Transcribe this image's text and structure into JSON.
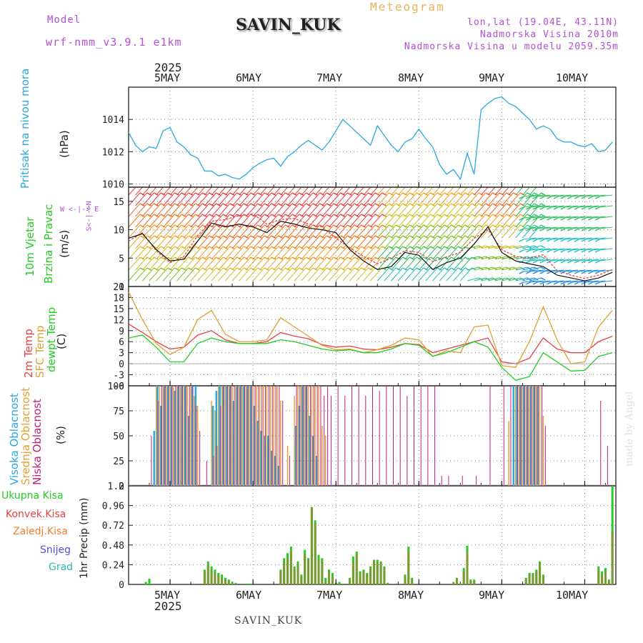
{
  "header": {
    "model_label": "Model",
    "model_name": "wrf-nmm_v3.9.1  e1km",
    "title": "Meteogram",
    "station": "SAVIN_KUK",
    "lonlat": "lon,lat (19.04E, 43.11N)",
    "elevation": "Nadmorska Visina 2010m",
    "model_elevation": "Nadmorska Visina u modelu 2059.35m"
  },
  "footer": {
    "station": "SAVIN_KUK",
    "watermark": "made by Angel"
  },
  "time_axis": {
    "year": "2025",
    "days": [
      "5MAY",
      "6MAY",
      "7MAY",
      "8MAY",
      "9MAY",
      "10MAY"
    ]
  },
  "panels": {
    "pressure": {
      "title": "Pritisak na nivou mora",
      "unit": "(hPa)"
    },
    "wind": {
      "title_line1": "10m Vjetar",
      "title_line2": "Brzina i Pravac",
      "unit": "(m/s)",
      "compass": "W <-|-> E",
      "compass_ns": "S<-|->N"
    },
    "temperature": {
      "label_2m": "2m Temp",
      "label_sfc": "SFC Temp",
      "label_dew": "dewpt Temp",
      "unit": "(C)"
    },
    "cloud": {
      "label_high": "Visoka Oblacnost",
      "label_mid": "Srednja Oblacnost",
      "label_low": "Niska Oblacnost",
      "unit": "(%)"
    },
    "precip": {
      "ylabel": "1hr Precip (mm)",
      "labels": [
        "Ukupna Kisa",
        "Konvek.Kisa",
        "Zaledj.Kisa",
        "Snijeg",
        "Grad"
      ]
    }
  },
  "colors": {
    "pressure": "#2aa8e0",
    "total_rain": "#22cc22",
    "conv_rain": "#e84040",
    "frozen_rain": "#f08030",
    "snow": "#5050e0",
    "hail": "#22c0b0",
    "temp2m": "#e84040",
    "sfc": "#e0a030",
    "dew": "#22cc22",
    "cloud_high": "#2aa8e0",
    "cloud_mid": "#e0a030",
    "cloud_low": "#c0207a",
    "violet": "#b44fd6"
  },
  "chart_data": [
    {
      "type": "line",
      "name": "pressure",
      "ylim": [
        1009.8,
        1016.0
      ],
      "yticks": [
        1010,
        1012,
        1014
      ],
      "x": [
        0,
        2,
        4,
        6,
        8,
        10,
        12,
        14,
        16,
        18,
        20,
        22,
        24,
        26,
        28,
        30,
        32,
        34,
        36,
        38,
        40,
        42,
        44,
        46,
        48,
        50,
        52,
        54,
        56,
        58,
        60,
        62,
        64,
        66,
        68,
        70,
        72,
        74,
        76,
        78,
        80,
        82,
        84,
        86,
        88,
        90,
        92,
        94,
        96,
        98,
        100,
        102,
        104,
        106,
        108,
        110,
        112,
        114,
        116,
        118,
        120,
        122,
        124,
        126,
        128,
        130,
        132,
        134,
        136,
        138,
        140
      ],
      "values": [
        1013.2,
        1012.4,
        1012.0,
        1012.3,
        1012.2,
        1013.3,
        1013.5,
        1012.6,
        1012.3,
        1011.8,
        1011.6,
        1010.8,
        1010.8,
        1010.5,
        1010.6,
        1010.4,
        1010.3,
        1010.6,
        1011.0,
        1011.3,
        1011.5,
        1011.6,
        1011.1,
        1011.7,
        1012.0,
        1012.4,
        1012.7,
        1012.4,
        1012.1,
        1012.6,
        1013.3,
        1014.0,
        1013.6,
        1013.2,
        1012.8,
        1012.4,
        1013.6,
        1013.0,
        1012.4,
        1012.0,
        1012.6,
        1012.8,
        1013.4,
        1012.8,
        1012.3,
        1011.2,
        1010.6,
        1010.9,
        1010.3,
        1011.9,
        1010.6,
        1014.6,
        1015.0,
        1015.3,
        1015.4,
        1015.0,
        1014.8,
        1014.4,
        1014.0,
        1013.4,
        1013.6,
        1013.4,
        1012.8,
        1012.6,
        1012.6,
        1012.4,
        1012.3,
        1012.5,
        1012.0,
        1012.1,
        1012.6
      ],
      "x_note": "hours from 4MAY 12UTC"
    },
    {
      "type": "line",
      "name": "wind_speed",
      "ylim": [
        0,
        17.5
      ],
      "yticks": [
        0,
        5,
        10,
        15
      ],
      "x": [
        0,
        4,
        8,
        12,
        16,
        20,
        24,
        28,
        32,
        36,
        40,
        44,
        48,
        52,
        56,
        60,
        64,
        68,
        72,
        76,
        80,
        84,
        88,
        92,
        96,
        100,
        104,
        108,
        112,
        116,
        120,
        124,
        128,
        132,
        136,
        140
      ],
      "series": [
        {
          "name": "speed",
          "values": [
            8.5,
            9.3,
            6.5,
            4.5,
            4.8,
            8.0,
            11.2,
            10.5,
            11.0,
            10.5,
            9.5,
            11.5,
            11.0,
            10.3,
            10.0,
            9.5,
            6.5,
            4.5,
            3.0,
            3.5,
            6.0,
            5.5,
            3.0,
            4.2,
            5.0,
            7.5,
            10.5,
            6.0,
            4.5,
            4.0,
            3.5,
            2.0,
            1.5,
            1.0,
            1.5,
            2.5
          ]
        },
        {
          "name": "gust",
          "values": [
            8.0,
            9.5,
            6.3,
            4.2,
            5.3,
            9.0,
            11.5,
            11.8,
            12.5,
            12.8,
            11.0,
            11.8,
            12.0,
            11.0,
            10.5,
            8.5,
            6.8,
            5.3,
            4.0,
            5.0,
            6.3,
            6.0,
            4.4,
            5.2,
            6.0,
            8.5,
            10.0,
            6.5,
            5.3,
            5.0,
            5.6,
            2.8,
            2.0,
            1.4,
            2.0,
            3.0
          ]
        }
      ]
    },
    {
      "type": "line",
      "name": "temperature",
      "ylim": [
        -6,
        21
      ],
      "yticks": [
        -6,
        -3,
        0,
        3,
        6,
        9,
        12,
        15,
        18,
        21
      ],
      "x": [
        0,
        4,
        8,
        12,
        16,
        20,
        24,
        28,
        32,
        36,
        40,
        44,
        48,
        52,
        56,
        60,
        64,
        68,
        72,
        76,
        80,
        84,
        88,
        92,
        96,
        100,
        104,
        108,
        112,
        116,
        120,
        124,
        128,
        132,
        136,
        140
      ],
      "series": [
        {
          "name": "temp2m",
          "values": [
            10.8,
            8.5,
            6.0,
            4.0,
            4.5,
            7.8,
            9.0,
            6.5,
            5.5,
            5.5,
            6.0,
            8.5,
            7.5,
            6.8,
            5.2,
            4.5,
            4.8,
            4.0,
            3.8,
            4.5,
            5.5,
            5.2,
            3.0,
            4.0,
            5.0,
            6.0,
            7.0,
            0.5,
            0.0,
            1.5,
            7.0,
            4.0,
            3.0,
            3.0,
            6.0,
            7.5
          ]
        },
        {
          "name": "sfc",
          "values": [
            19.5,
            12.0,
            5.5,
            2.5,
            4.5,
            12.0,
            14.5,
            8.0,
            6.0,
            6.0,
            6.5,
            12.5,
            10.0,
            7.5,
            5.0,
            3.8,
            4.0,
            3.0,
            3.8,
            5.0,
            7.0,
            6.5,
            2.0,
            3.5,
            3.0,
            10.0,
            10.5,
            -0.5,
            -1.0,
            6.0,
            15.5,
            6.5,
            0.0,
            0.5,
            10.0,
            14.5
          ]
        },
        {
          "name": "dew",
          "values": [
            7.0,
            7.8,
            4.5,
            0.5,
            0.5,
            5.5,
            7.0,
            6.0,
            5.5,
            5.5,
            5.5,
            6.5,
            6.0,
            5.0,
            4.0,
            3.5,
            3.8,
            3.0,
            3.0,
            4.0,
            5.5,
            5.0,
            2.0,
            3.0,
            4.5,
            6.0,
            4.5,
            -1.0,
            -4.5,
            -3.5,
            3.0,
            0.5,
            -2.0,
            -1.8,
            2.0,
            3.0
          ]
        }
      ]
    },
    {
      "type": "bar",
      "name": "cloud_cover",
      "ylim": [
        0,
        100
      ],
      "yticks": [
        0,
        25,
        50,
        75,
        100
      ],
      "x": [
        6,
        8,
        9,
        10,
        11,
        12,
        13,
        14,
        15,
        16,
        17,
        18,
        19,
        20,
        22,
        24,
        25,
        26,
        27,
        28,
        29,
        30,
        31,
        32,
        33,
        34,
        35,
        36,
        37,
        38,
        39,
        40,
        41,
        42,
        43,
        44,
        46,
        48,
        49,
        50,
        51,
        52,
        53,
        54,
        55,
        56,
        57,
        58,
        60,
        62,
        64,
        66,
        68,
        70,
        72,
        74,
        76,
        78,
        80,
        82,
        84,
        86,
        88,
        90,
        92,
        96,
        100,
        104,
        108,
        110,
        112,
        113,
        114,
        115,
        116,
        117,
        118,
        119,
        120,
        121,
        122,
        124,
        126,
        128,
        130,
        132,
        134,
        136,
        138
      ],
      "series": [
        {
          "name": "high",
          "values": [
            0,
            55,
            100,
            80,
            100,
            100,
            100,
            95,
            100,
            100,
            100,
            70,
            100,
            100,
            0,
            0,
            80,
            95,
            100,
            100,
            100,
            100,
            85,
            100,
            100,
            100,
            100,
            100,
            80,
            65,
            55,
            50,
            50,
            35,
            30,
            20,
            0,
            0,
            60,
            80,
            100,
            100,
            70,
            50,
            30,
            0,
            0,
            0,
            0,
            0,
            0,
            0,
            0,
            0,
            0,
            0,
            0,
            0,
            0,
            0,
            0,
            0,
            0,
            0,
            0,
            0,
            0,
            0,
            0,
            0,
            100,
            100,
            100,
            100,
            100,
            100,
            100,
            100,
            0,
            0,
            0,
            0,
            0,
            0,
            0,
            0,
            0,
            0,
            0
          ]
        },
        {
          "name": "mid",
          "values": [
            0,
            100,
            100,
            100,
            100,
            100,
            100,
            100,
            100,
            100,
            100,
            100,
            90,
            80,
            0,
            85,
            75,
            100,
            100,
            100,
            100,
            100,
            100,
            100,
            100,
            100,
            100,
            100,
            100,
            100,
            100,
            100,
            100,
            100,
            100,
            85,
            40,
            90,
            100,
            100,
            100,
            100,
            100,
            100,
            100,
            60,
            50,
            0,
            0,
            0,
            0,
            0,
            0,
            0,
            0,
            0,
            0,
            0,
            0,
            0,
            0,
            0,
            0,
            0,
            0,
            0,
            0,
            0,
            0,
            65,
            100,
            100,
            100,
            100,
            100,
            100,
            100,
            100,
            70,
            0,
            0,
            0,
            0,
            0,
            0,
            0,
            0,
            0,
            0
          ]
        },
        {
          "name": "low",
          "values": [
            50,
            85,
            100,
            100,
            100,
            100,
            100,
            100,
            100,
            100,
            100,
            100,
            80,
            55,
            25,
            30,
            40,
            80,
            100,
            100,
            100,
            100,
            100,
            100,
            100,
            100,
            100,
            100,
            100,
            100,
            100,
            100,
            100,
            100,
            100,
            85,
            30,
            100,
            100,
            100,
            100,
            100,
            100,
            100,
            100,
            90,
            100,
            90,
            100,
            90,
            100,
            100,
            90,
            100,
            95,
            100,
            100,
            100,
            90,
            100,
            100,
            100,
            100,
            10,
            10,
            10,
            10,
            100,
            100,
            100,
            100,
            100,
            100,
            100,
            100,
            100,
            100,
            100,
            60,
            0,
            0,
            0,
            0,
            0,
            0,
            0,
            0,
            85,
            40
          ]
        }
      ]
    },
    {
      "type": "bar",
      "name": "precipitation",
      "ylim": [
        0,
        1.2
      ],
      "yticks": [
        0,
        0.24,
        0.48,
        0.72,
        0.96,
        1.2
      ],
      "x": [
        5,
        6,
        22,
        23,
        24,
        25,
        26,
        27,
        28,
        29,
        30,
        31,
        34,
        35,
        44,
        45,
        46,
        47,
        48,
        49,
        50,
        51,
        52,
        53,
        54,
        55,
        56,
        57,
        58,
        59,
        60,
        61,
        62,
        64,
        65,
        66,
        67,
        68,
        69,
        70,
        71,
        72,
        73,
        74,
        75,
        80,
        81,
        82,
        94,
        95,
        96,
        97,
        98,
        99,
        100,
        115,
        116,
        117,
        118,
        119,
        120,
        136,
        137,
        138,
        139,
        140
      ],
      "series": [
        {
          "name": "total",
          "values": [
            0.03,
            0.07,
            0.18,
            0.28,
            0.22,
            0.18,
            0.14,
            0.12,
            0.08,
            0.06,
            0.03,
            0.02,
            0.01,
            0.01,
            0.18,
            0.32,
            0.38,
            0.46,
            0.22,
            0.28,
            0.12,
            0.42,
            0.32,
            0.94,
            0.78,
            0.36,
            0.32,
            0.08,
            0.18,
            0.14,
            0.02,
            0.03,
            0.01,
            0.08,
            0.34,
            0.4,
            0.16,
            0.18,
            0.14,
            0.22,
            0.3,
            0.3,
            0.28,
            0.22,
            0.02,
            0.12,
            0.46,
            0.08,
            0.03,
            0.08,
            0.01,
            0.2,
            0.47,
            0.06,
            0.06,
            0.08,
            0.14,
            0.14,
            0.18,
            0.28,
            0.12,
            0.22,
            0.16,
            0.2,
            0.06,
            1.2
          ]
        },
        {
          "name": "convective",
          "values": [
            0,
            0,
            0.16,
            0.24,
            0.18,
            0.14,
            0.12,
            0.08,
            0.06,
            0.04,
            0.02,
            0.01,
            0,
            0,
            0.16,
            0.28,
            0.32,
            0.4,
            0.18,
            0.24,
            0.1,
            0.36,
            0.3,
            0.94,
            0.74,
            0.3,
            0.28,
            0.04,
            0.14,
            0.1,
            0.01,
            0.02,
            0,
            0.06,
            0.28,
            0.36,
            0.14,
            0.16,
            0.12,
            0.2,
            0.28,
            0.28,
            0.26,
            0.2,
            0.01,
            0.1,
            0.4,
            0.06,
            0.02,
            0.06,
            0,
            0.16,
            0.4,
            0.04,
            0.04,
            0.06,
            0.12,
            0.12,
            0.16,
            0.26,
            0.1,
            0.18,
            0.12,
            0.16,
            0.04,
            0.64
          ]
        }
      ]
    }
  ]
}
